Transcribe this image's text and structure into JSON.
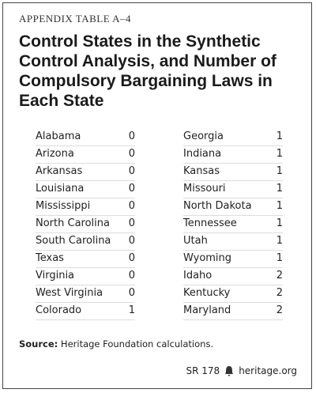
{
  "header": {
    "label": "APPENDIX TABLE A–4",
    "title": "Control States in the Synthetic Control Analysis, and Number of Compulsory Bargaining Laws in Each State"
  },
  "table": {
    "columns": [
      [
        [
          "Alabama",
          0
        ],
        [
          "Arizona",
          0
        ],
        [
          "Arkansas",
          0
        ],
        [
          "Louisiana",
          0
        ],
        [
          "Mississippi",
          0
        ],
        [
          "North Carolina",
          0
        ],
        [
          "South Carolina",
          0
        ],
        [
          "Texas",
          0
        ],
        [
          "Virginia",
          0
        ],
        [
          "West Virginia",
          0
        ],
        [
          "Colorado",
          1
        ]
      ],
      [
        [
          "Georgia",
          1
        ],
        [
          "Indiana",
          1
        ],
        [
          "Kansas",
          1
        ],
        [
          "Missouri",
          1
        ],
        [
          "North Dakota",
          1
        ],
        [
          "Tennessee",
          1
        ],
        [
          "Utah",
          1
        ],
        [
          "Wyoming",
          1
        ],
        [
          "Idaho",
          2
        ],
        [
          "Kentucky",
          2
        ],
        [
          "Maryland",
          2
        ]
      ]
    ]
  },
  "source": {
    "label": "Source:",
    "text": "Heritage Foundation calculations."
  },
  "footer": {
    "report": "SR 178",
    "site": "heritage.org"
  }
}
